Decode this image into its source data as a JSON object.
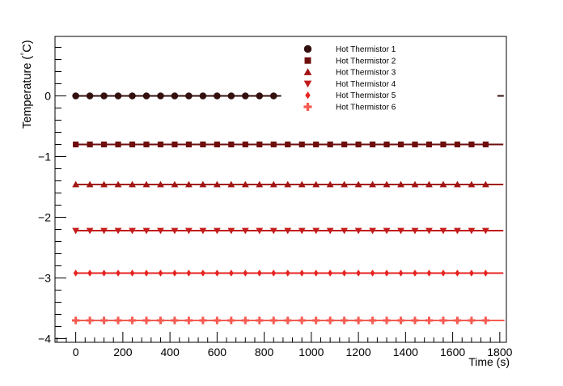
{
  "chart_data": {
    "type": "line",
    "title": "",
    "xlabel": "Time (s)",
    "ylabel": "Temperature (°C)",
    "xlim": [
      -88,
      1828
    ],
    "ylim": [
      -4.06,
      0.98
    ],
    "x_major_ticks": [
      0,
      200,
      400,
      600,
      800,
      1000,
      1200,
      1400,
      1600,
      1800
    ],
    "x_minor_step": 40,
    "y_major_ticks": [
      0,
      -1,
      -2,
      -3,
      -4
    ],
    "y_minor_step": 0.2,
    "marker_step_s": 60,
    "grid": false,
    "axis_color": "#000000",
    "legend_position": "top-right-inside",
    "series": [
      {
        "name": "Hot Thermistor 1",
        "marker": "circle",
        "color": "#330f0f",
        "y": 0.0,
        "line_segments": [
          [
            0,
            872
          ],
          [
            1790,
            1817
          ]
        ],
        "markers": {
          "start": 0,
          "end": 840
        }
      },
      {
        "name": "Hot Thermistor 2",
        "marker": "square",
        "color": "#6e0e0e",
        "y": -0.8,
        "line_segments": [
          [
            0,
            1815
          ]
        ],
        "markers": {
          "start": 0,
          "end": 1740
        }
      },
      {
        "name": "Hot Thermistor 3",
        "marker": "triangle-up",
        "color": "#a21515",
        "y": -1.46,
        "line_segments": [
          [
            0,
            1815
          ]
        ],
        "markers": {
          "start": 0,
          "end": 1740
        }
      },
      {
        "name": "Hot Thermistor 4",
        "marker": "triangle-down",
        "color": "#c41b1b",
        "y": -2.22,
        "line_segments": [
          [
            0,
            1815
          ]
        ],
        "markers": {
          "start": 0,
          "end": 1740
        }
      },
      {
        "name": "Hot Thermistor 5",
        "marker": "diamond",
        "color": "#e62320",
        "y": -2.92,
        "line_segments": [
          [
            0,
            1815
          ]
        ],
        "markers": {
          "start": 0,
          "end": 1740
        }
      },
      {
        "name": "Hot Thermistor 6",
        "marker": "cross",
        "color": "#f55a50",
        "y": -3.7,
        "line_segments": [
          [
            0,
            1820
          ]
        ],
        "markers": {
          "start": 0,
          "end": 1740
        }
      }
    ]
  }
}
